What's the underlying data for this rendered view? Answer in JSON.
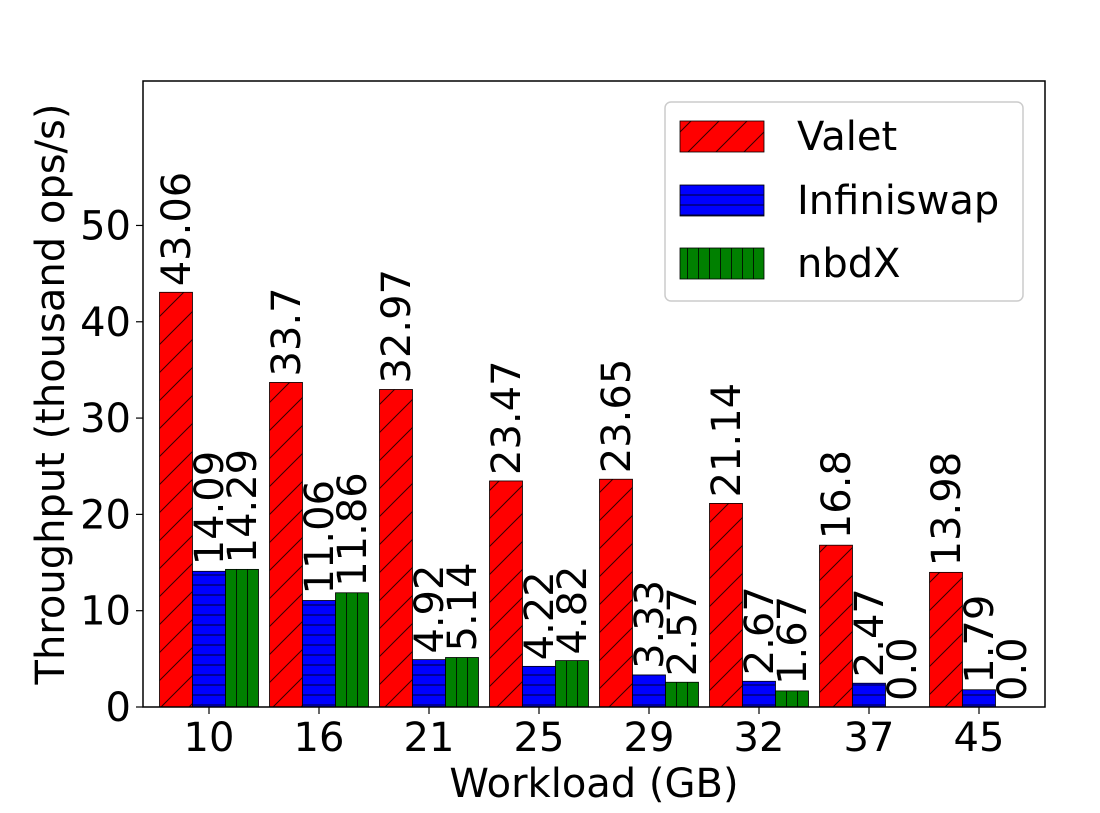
{
  "chart_data": {
    "type": "bar",
    "title": "",
    "xlabel": "Workload (GB)",
    "ylabel": "Throughput (thousand ops/s)",
    "categories": [
      "10",
      "16",
      "21",
      "25",
      "29",
      "32",
      "37",
      "45"
    ],
    "ylim": [
      0,
      65
    ],
    "yticks": [
      "0",
      "10",
      "20",
      "30",
      "40",
      "50"
    ],
    "grid": false,
    "legend_position": "top-right",
    "series": [
      {
        "name": "Valet",
        "color": "#ff0000",
        "hatch": "diagonal",
        "values": [
          43.06,
          33.7,
          32.97,
          23.47,
          23.65,
          21.14,
          16.8,
          13.98
        ],
        "labels": [
          "43.06",
          "33.7",
          "32.97",
          "23.47",
          "23.65",
          "21.14",
          "16.8",
          "13.98"
        ]
      },
      {
        "name": "Infiniswap",
        "color": "#0000ff",
        "hatch": "horizontal",
        "values": [
          14.09,
          11.06,
          4.92,
          4.22,
          3.33,
          2.67,
          2.47,
          1.79
        ],
        "labels": [
          "14.09",
          "11.06",
          "4.92",
          "4.22",
          "3.33",
          "2.67",
          "2.47",
          "1.79"
        ]
      },
      {
        "name": "nbdX",
        "color": "#008000",
        "hatch": "vertical",
        "values": [
          14.29,
          11.86,
          5.14,
          4.82,
          2.57,
          1.67,
          0.0,
          0.0
        ],
        "labels": [
          "14.29",
          "11.86",
          "5.14",
          "4.82",
          "2.57",
          "1.67",
          "0.0",
          "0.0"
        ]
      }
    ]
  }
}
